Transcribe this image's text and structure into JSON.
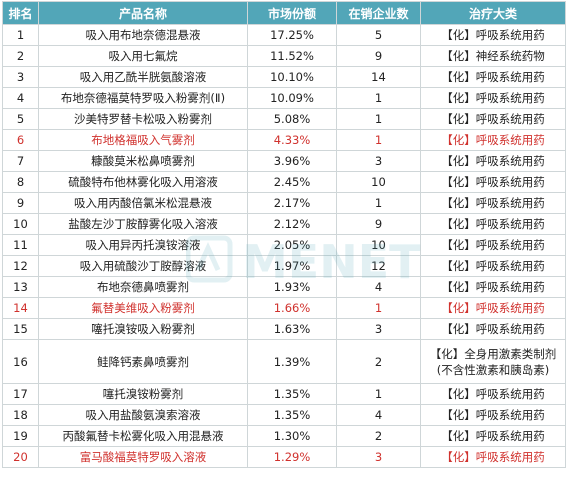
{
  "table": {
    "headers": {
      "rank": "排名",
      "name": "产品名称",
      "share": "市场份额",
      "firms": "在销企业数",
      "class": "治疗大类"
    },
    "rows": [
      {
        "rank": "1",
        "name": "吸入用布地奈德混悬液",
        "share": "17.25%",
        "firms": "5",
        "class": "【化】呼吸系统用药",
        "class2": "",
        "highlight": false
      },
      {
        "rank": "2",
        "name": "吸入用七氟烷",
        "share": "11.52%",
        "firms": "9",
        "class": "【化】神经系统药物",
        "class2": "",
        "highlight": false
      },
      {
        "rank": "3",
        "name": "吸入用乙酰半胱氨酸溶液",
        "share": "10.10%",
        "firms": "14",
        "class": "【化】呼吸系统用药",
        "class2": "",
        "highlight": false
      },
      {
        "rank": "4",
        "name": "布地奈德福莫特罗吸入粉雾剂(Ⅱ)",
        "share": "10.09%",
        "firms": "1",
        "class": "【化】呼吸系统用药",
        "class2": "",
        "highlight": false
      },
      {
        "rank": "5",
        "name": "沙美特罗替卡松吸入粉雾剂",
        "share": "5.08%",
        "firms": "1",
        "class": "【化】呼吸系统用药",
        "class2": "",
        "highlight": false
      },
      {
        "rank": "6",
        "name": "布地格福吸入气雾剂",
        "share": "4.33%",
        "firms": "1",
        "class": "【化】呼吸系统用药",
        "class2": "",
        "highlight": true
      },
      {
        "rank": "7",
        "name": "糠酸莫米松鼻喷雾剂",
        "share": "3.96%",
        "firms": "3",
        "class": "【化】呼吸系统用药",
        "class2": "",
        "highlight": false
      },
      {
        "rank": "8",
        "name": "硫酸特布他林雾化吸入用溶液",
        "share": "2.45%",
        "firms": "10",
        "class": "【化】呼吸系统用药",
        "class2": "",
        "highlight": false
      },
      {
        "rank": "9",
        "name": "吸入用丙酸倍氯米松混悬液",
        "share": "2.17%",
        "firms": "1",
        "class": "【化】呼吸系统用药",
        "class2": "",
        "highlight": false
      },
      {
        "rank": "10",
        "name": "盐酸左沙丁胺醇雾化吸入溶液",
        "share": "2.12%",
        "firms": "9",
        "class": "【化】呼吸系统用药",
        "class2": "",
        "highlight": false
      },
      {
        "rank": "11",
        "name": "吸入用异丙托溴铵溶液",
        "share": "2.05%",
        "firms": "10",
        "class": "【化】呼吸系统用药",
        "class2": "",
        "highlight": false
      },
      {
        "rank": "12",
        "name": "吸入用硫酸沙丁胺醇溶液",
        "share": "1.97%",
        "firms": "12",
        "class": "【化】呼吸系统用药",
        "class2": "",
        "highlight": false
      },
      {
        "rank": "13",
        "name": "布地奈德鼻喷雾剂",
        "share": "1.93%",
        "firms": "4",
        "class": "【化】呼吸系统用药",
        "class2": "",
        "highlight": false
      },
      {
        "rank": "14",
        "name": "氟替美维吸入粉雾剂",
        "share": "1.66%",
        "firms": "1",
        "class": "【化】呼吸系统用药",
        "class2": "",
        "highlight": true
      },
      {
        "rank": "15",
        "name": "噻托溴铵吸入粉雾剂",
        "share": "1.63%",
        "firms": "3",
        "class": "【化】呼吸系统用药",
        "class2": "",
        "highlight": false
      },
      {
        "rank": "16",
        "name": "鲑降钙素鼻喷雾剂",
        "share": "1.39%",
        "firms": "2",
        "class": "【化】全身用激素类制剂",
        "class2": "(不含性激素和胰岛素)",
        "highlight": false
      },
      {
        "rank": "17",
        "name": "噻托溴铵粉雾剂",
        "share": "1.35%",
        "firms": "1",
        "class": "【化】呼吸系统用药",
        "class2": "",
        "highlight": false
      },
      {
        "rank": "18",
        "name": "吸入用盐酸氨溴索溶液",
        "share": "1.35%",
        "firms": "4",
        "class": "【化】呼吸系统用药",
        "class2": "",
        "highlight": false
      },
      {
        "rank": "19",
        "name": "丙酸氟替卡松雾化吸入用混悬液",
        "share": "1.30%",
        "firms": "2",
        "class": "【化】呼吸系统用药",
        "class2": "",
        "highlight": false
      },
      {
        "rank": "20",
        "name": "富马酸福莫特罗吸入溶液",
        "share": "1.29%",
        "firms": "3",
        "class": "【化】呼吸系统用药",
        "class2": "",
        "highlight": true
      }
    ]
  },
  "watermark": {
    "text": "MENET",
    "color": "#52a6b8"
  }
}
